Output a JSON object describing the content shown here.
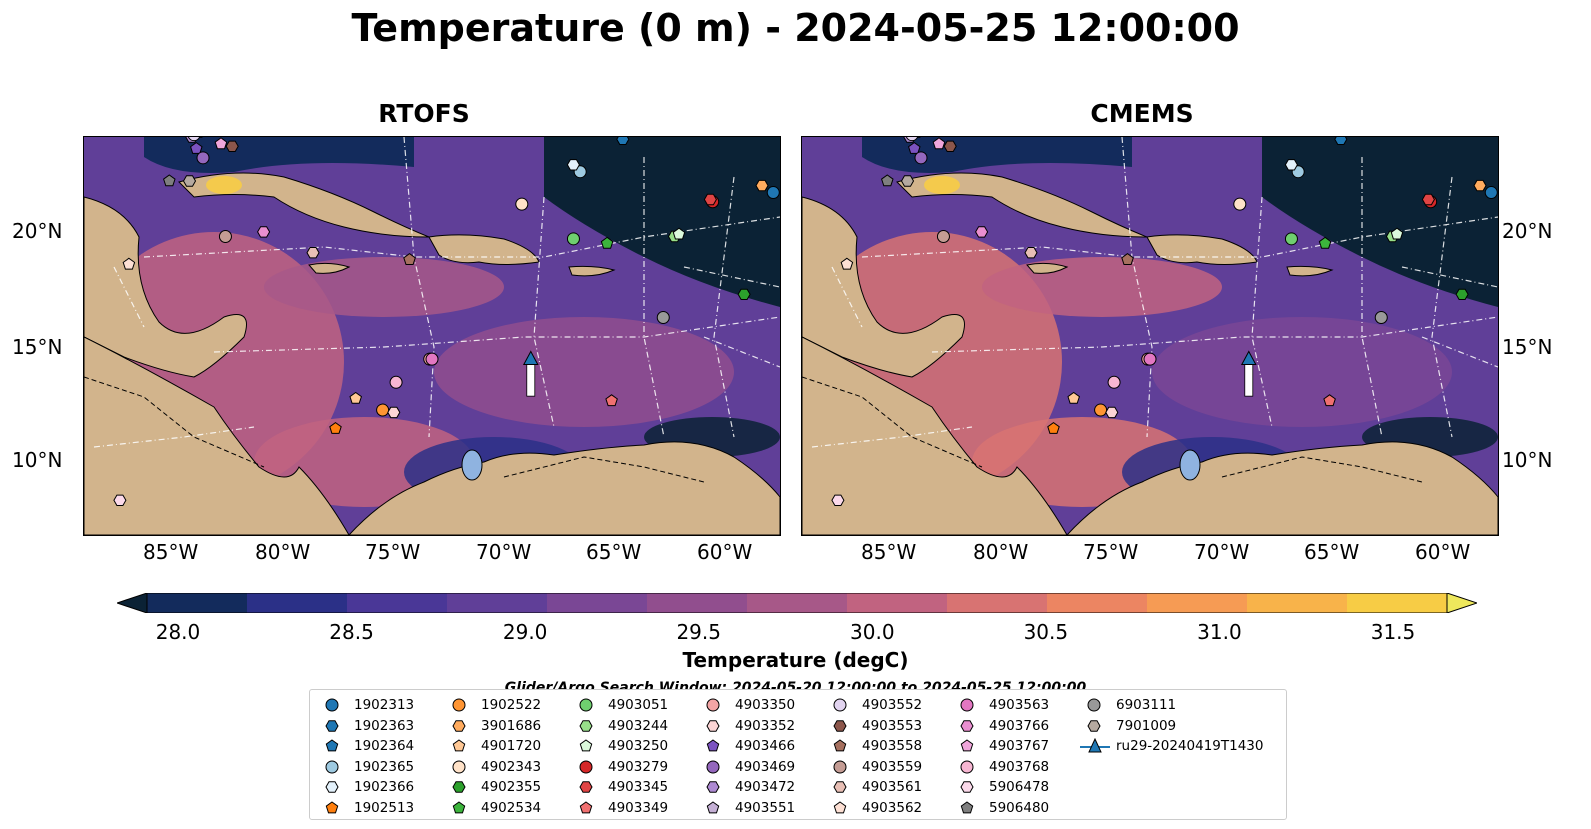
{
  "title": "Temperature (0 m) - 2024-05-25 12:00:00",
  "panels": [
    {
      "name": "RTOFS"
    },
    {
      "name": "CMEMS"
    }
  ],
  "lat_ticks": [
    "20°N",
    "15°N",
    "10°N"
  ],
  "lon_ticks": [
    "85°W",
    "80°W",
    "75°W",
    "70°W",
    "65°W",
    "60°W"
  ],
  "colorbar": {
    "label": "Temperature (degC)",
    "ticks": [
      "28.0",
      "28.5",
      "29.0",
      "29.5",
      "30.0",
      "30.5",
      "31.0",
      "31.5"
    ],
    "colors": [
      "#0b2235",
      "#132b5c",
      "#2b3087",
      "#4a3797",
      "#603f98",
      "#7a4795",
      "#914e8e",
      "#a75888",
      "#c16380",
      "#d87372",
      "#ec8562",
      "#f69b54",
      "#f8b34a",
      "#f7cc45",
      "#eee85c"
    ]
  },
  "legend": {
    "title": "Glider/Argo Search Window: 2024-05-20 12:00:00 to 2024-05-25 12:00:00",
    "items": [
      {
        "id": "1902313",
        "marker": "circle",
        "color": "#1f77b4"
      },
      {
        "id": "1902363",
        "marker": "hexagon",
        "color": "#1f77b4"
      },
      {
        "id": "1902364",
        "marker": "pentagon",
        "color": "#1f77b4"
      },
      {
        "id": "1902365",
        "marker": "circle",
        "color": "#9ecae1"
      },
      {
        "id": "1902366",
        "marker": "hexagon",
        "color": "#e3f1fb"
      },
      {
        "id": "1902513",
        "marker": "pentagon",
        "color": "#ff7f0e"
      },
      {
        "id": "1902522",
        "marker": "circle",
        "color": "#ff9533"
      },
      {
        "id": "3901686",
        "marker": "hexagon",
        "color": "#ffab5e"
      },
      {
        "id": "4901720",
        "marker": "pentagon",
        "color": "#ffc895"
      },
      {
        "id": "4902343",
        "marker": "circle",
        "color": "#ffe2c8"
      },
      {
        "id": "4902355",
        "marker": "hexagon",
        "color": "#2ca02c"
      },
      {
        "id": "4902534",
        "marker": "pentagon",
        "color": "#3cb43c"
      },
      {
        "id": "4903051",
        "marker": "circle",
        "color": "#6fcf6f"
      },
      {
        "id": "4903244",
        "marker": "hexagon",
        "color": "#98df8a"
      },
      {
        "id": "4903250",
        "marker": "pentagon",
        "color": "#dcfadc"
      },
      {
        "id": "4903279",
        "marker": "circle",
        "color": "#d62728"
      },
      {
        "id": "4903345",
        "marker": "hexagon",
        "color": "#e04444"
      },
      {
        "id": "4903349",
        "marker": "pentagon",
        "color": "#f07070"
      },
      {
        "id": "4903350",
        "marker": "circle",
        "color": "#f4a5a5"
      },
      {
        "id": "4903352",
        "marker": "hexagon",
        "color": "#fcd5d5"
      },
      {
        "id": "4903466",
        "marker": "pentagon",
        "color": "#7b52c0"
      },
      {
        "id": "4903469",
        "marker": "circle",
        "color": "#9467bd"
      },
      {
        "id": "4903472",
        "marker": "hexagon",
        "color": "#ae8ad3"
      },
      {
        "id": "4903551",
        "marker": "pentagon",
        "color": "#c5b0d5"
      },
      {
        "id": "4903552",
        "marker": "circle",
        "color": "#e2d4f0"
      },
      {
        "id": "4903553",
        "marker": "hexagon",
        "color": "#8c564b"
      },
      {
        "id": "4903558",
        "marker": "pentagon",
        "color": "#a6705f"
      },
      {
        "id": "4903559",
        "marker": "circle",
        "color": "#c49c94"
      },
      {
        "id": "4903561",
        "marker": "hexagon",
        "color": "#e8bfb5"
      },
      {
        "id": "4903562",
        "marker": "pentagon",
        "color": "#fde0d4"
      },
      {
        "id": "4903563",
        "marker": "circle",
        "color": "#e377c2"
      },
      {
        "id": "4903766",
        "marker": "hexagon",
        "color": "#ea8fd0"
      },
      {
        "id": "4903767",
        "marker": "pentagon",
        "color": "#f0a6db"
      },
      {
        "id": "4903768",
        "marker": "circle",
        "color": "#f7b6d2"
      },
      {
        "id": "5906478",
        "marker": "hexagon",
        "color": "#fbd9ea"
      },
      {
        "id": "5906480",
        "marker": "pentagon",
        "color": "#7f7f7f"
      },
      {
        "id": "6903111",
        "marker": "circle",
        "color": "#999999"
      },
      {
        "id": "7901009",
        "marker": "hexagon",
        "color": "#b5a9a0"
      },
      {
        "id": "ru29-20240419T1430",
        "marker": "triangle-line",
        "color": "#1f77b4"
      }
    ]
  },
  "chart_data": {
    "type": "heatmap",
    "title": "Temperature (0 m) - 2024-05-25 12:00:00",
    "variable": "Temperature (degC)",
    "depth_m": 0,
    "panels": [
      "RTOFS",
      "CMEMS"
    ],
    "xlim_lon": [
      -89,
      -58
    ],
    "ylim_lat": [
      7,
      24.2
    ],
    "color_range": [
      28.0,
      31.5
    ],
    "floats": [
      {
        "id": "1902313",
        "lon": -58.3,
        "lat": 21.8
      },
      {
        "id": "1902363",
        "lon": -65.0,
        "lat": 24.1
      },
      {
        "id": "1902365",
        "lon": -66.9,
        "lat": 22.7
      },
      {
        "id": "1902366",
        "lon": -67.2,
        "lat": 23.0
      },
      {
        "id": "1902513",
        "lon": -77.8,
        "lat": 11.6
      },
      {
        "id": "1902522",
        "lon": -75.7,
        "lat": 12.4
      },
      {
        "id": "3901686",
        "lon": -58.8,
        "lat": 22.1
      },
      {
        "id": "4901720",
        "lon": -76.9,
        "lat": 12.9
      },
      {
        "id": "4902343",
        "lon": -69.5,
        "lat": 21.3
      },
      {
        "id": "4902355",
        "lon": -59.6,
        "lat": 17.4
      },
      {
        "id": "4902534",
        "lon": -65.7,
        "lat": 19.6
      },
      {
        "id": "4903051",
        "lon": -67.2,
        "lat": 19.8
      },
      {
        "id": "4903244",
        "lon": -62.7,
        "lat": 19.9
      },
      {
        "id": "4903250",
        "lon": -62.5,
        "lat": 20.0
      },
      {
        "id": "4903279",
        "lon": -61.0,
        "lat": 21.4
      },
      {
        "id": "4903345",
        "lon": -61.1,
        "lat": 21.5
      },
      {
        "id": "4903349",
        "lon": -65.5,
        "lat": 12.8
      },
      {
        "id": "4903350",
        "lon": -73.6,
        "lat": 14.6
      },
      {
        "id": "4903352",
        "lon": -75.2,
        "lat": 12.3
      },
      {
        "id": "4903466",
        "lon": -84.0,
        "lat": 23.7
      },
      {
        "id": "4903469",
        "lon": -83.7,
        "lat": 23.3
      },
      {
        "id": "4903472",
        "lon": -84.2,
        "lat": 24.2
      },
      {
        "id": "4903551",
        "lon": -83.9,
        "lat": 24.4
      },
      {
        "id": "4903552",
        "lon": -84.1,
        "lat": 24.3
      },
      {
        "id": "4903553",
        "lon": -82.4,
        "lat": 23.8
      },
      {
        "id": "4903558",
        "lon": -74.5,
        "lat": 18.9
      },
      {
        "id": "4903559",
        "lon": -82.7,
        "lat": 19.9
      },
      {
        "id": "4903561",
        "lon": -78.8,
        "lat": 19.2
      },
      {
        "id": "4903562",
        "lon": -87.0,
        "lat": 18.7
      },
      {
        "id": "4903563",
        "lon": -73.5,
        "lat": 14.6
      },
      {
        "id": "4903766",
        "lon": -81.0,
        "lat": 20.1
      },
      {
        "id": "4903767",
        "lon": -82.9,
        "lat": 23.9
      },
      {
        "id": "4903768",
        "lon": -75.1,
        "lat": 13.6
      },
      {
        "id": "5906478",
        "lon": -87.4,
        "lat": 8.5
      },
      {
        "id": "5906480",
        "lon": -85.2,
        "lat": 22.3
      },
      {
        "id": "6903111",
        "lon": -63.2,
        "lat": 16.4
      },
      {
        "id": "7901009",
        "lon": -84.3,
        "lat": 22.3
      }
    ],
    "glider_track": {
      "id": "ru29-20240419T1430",
      "lon": [
        -69.1,
        -69.1,
        -69.1,
        -69.1
      ],
      "lat": [
        13.0,
        13.6,
        14.0,
        14.5
      ]
    }
  }
}
